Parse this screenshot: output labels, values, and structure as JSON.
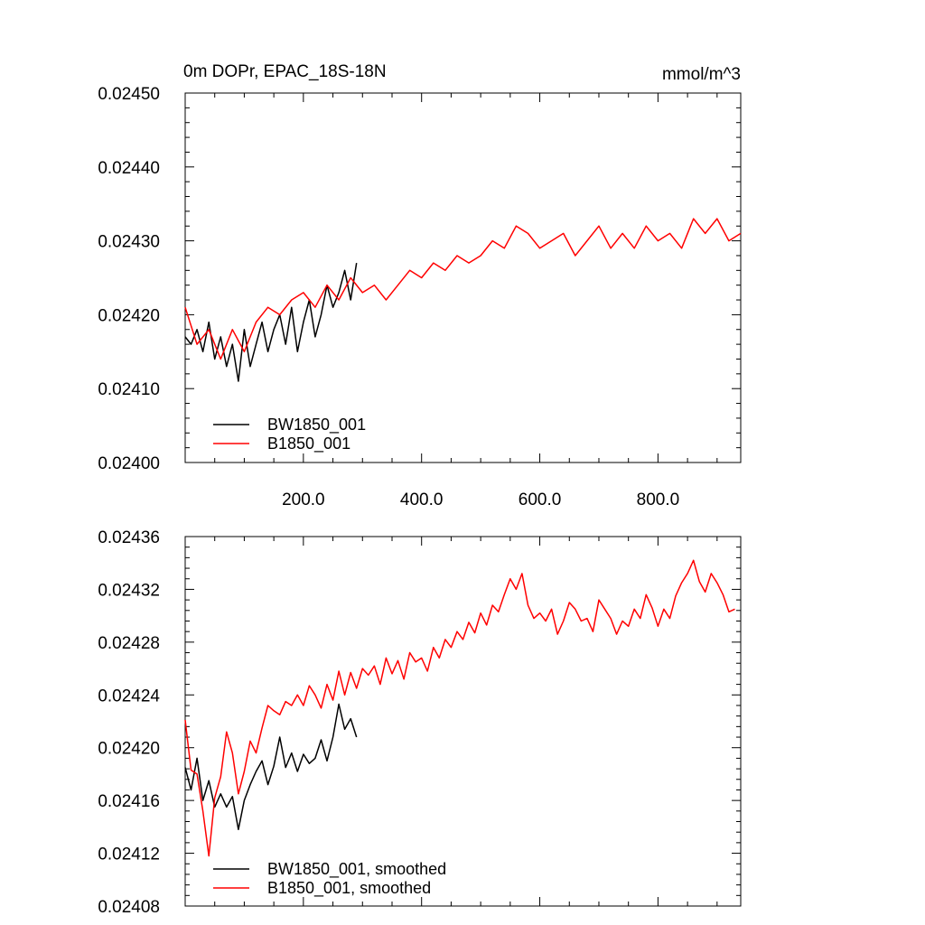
{
  "chart_data": [
    {
      "type": "line",
      "title_left": "0m DOPr, EPAC_18S-18N",
      "title_right": "mmol/m^3",
      "xlim": [
        0,
        940
      ],
      "ylim": [
        0.024,
        0.0245
      ],
      "x_tick_values": [
        200,
        400,
        600,
        800
      ],
      "x_tick_labels": [
        "200.0",
        "400.0",
        "600.0",
        "800.0"
      ],
      "y_tick_values": [
        0.024,
        0.0241,
        0.0242,
        0.0243,
        0.0244,
        0.0245
      ],
      "y_tick_labels": [
        "0.02400",
        "0.02410",
        "0.02420",
        "0.02430",
        "0.02440",
        "0.02450"
      ],
      "legend_position": "bottom-left",
      "series": [
        {
          "name": "BW1850_001",
          "color": "#000000",
          "x": [
            0,
            10,
            20,
            30,
            40,
            50,
            60,
            70,
            80,
            90,
            100,
            110,
            120,
            130,
            140,
            150,
            160,
            170,
            180,
            190,
            200,
            210,
            220,
            230,
            240,
            250,
            260,
            270,
            280,
            290
          ],
          "y": [
            0.02417,
            0.02416,
            0.02418,
            0.02415,
            0.02419,
            0.02414,
            0.02417,
            0.02413,
            0.02416,
            0.02411,
            0.02418,
            0.02413,
            0.02416,
            0.02419,
            0.02415,
            0.02418,
            0.0242,
            0.02416,
            0.02421,
            0.02415,
            0.02419,
            0.02422,
            0.02417,
            0.0242,
            0.02424,
            0.02421,
            0.02423,
            0.02426,
            0.02422,
            0.02427
          ]
        },
        {
          "name": "B1850_001",
          "color": "#ff0000",
          "x": [
            0,
            20,
            40,
            60,
            80,
            100,
            120,
            140,
            160,
            180,
            200,
            220,
            240,
            260,
            280,
            300,
            320,
            340,
            360,
            380,
            400,
            420,
            440,
            460,
            480,
            500,
            520,
            540,
            560,
            580,
            600,
            620,
            640,
            660,
            680,
            700,
            720,
            740,
            760,
            780,
            800,
            820,
            840,
            860,
            880,
            900,
            920,
            940
          ],
          "y": [
            0.02421,
            0.02416,
            0.02418,
            0.02414,
            0.02418,
            0.02415,
            0.02419,
            0.02421,
            0.0242,
            0.02422,
            0.02423,
            0.02421,
            0.02424,
            0.02422,
            0.02425,
            0.02423,
            0.02424,
            0.02422,
            0.02424,
            0.02426,
            0.02425,
            0.02427,
            0.02426,
            0.02428,
            0.02427,
            0.02428,
            0.0243,
            0.02429,
            0.02432,
            0.02431,
            0.02429,
            0.0243,
            0.02431,
            0.02428,
            0.0243,
            0.02432,
            0.02429,
            0.02431,
            0.02429,
            0.02432,
            0.0243,
            0.02431,
            0.02429,
            0.02433,
            0.02431,
            0.02433,
            0.0243,
            0.02431
          ]
        }
      ]
    },
    {
      "type": "line",
      "xlim": [
        0,
        940
      ],
      "ylim": [
        0.02408,
        0.02436
      ],
      "x_tick_values": [
        200,
        400,
        600,
        800
      ],
      "y_tick_values": [
        0.02408,
        0.02412,
        0.02416,
        0.0242,
        0.02424,
        0.02428,
        0.02432,
        0.02436
      ],
      "y_tick_labels": [
        "0.02408",
        "0.02412",
        "0.02416",
        "0.02420",
        "0.02424",
        "0.02428",
        "0.02432",
        "0.02436"
      ],
      "legend_position": "bottom-left",
      "series": [
        {
          "name": "BW1850_001, smoothed",
          "color": "#000000",
          "x": [
            0,
            10,
            20,
            30,
            40,
            50,
            60,
            70,
            80,
            90,
            100,
            110,
            120,
            130,
            140,
            150,
            160,
            170,
            180,
            190,
            200,
            210,
            220,
            230,
            240,
            250,
            260,
            270,
            280,
            290
          ],
          "y": [
            0.024185,
            0.024168,
            0.024192,
            0.02416,
            0.024175,
            0.024155,
            0.024165,
            0.024155,
            0.024163,
            0.024138,
            0.02416,
            0.024172,
            0.024182,
            0.02419,
            0.024172,
            0.024186,
            0.024208,
            0.024185,
            0.024196,
            0.024182,
            0.024195,
            0.024188,
            0.024192,
            0.024206,
            0.02419,
            0.024208,
            0.024233,
            0.024214,
            0.024222,
            0.024208
          ]
        },
        {
          "name": "B1850_001, smoothed",
          "color": "#ff0000",
          "x": [
            0,
            10,
            20,
            30,
            40,
            50,
            60,
            70,
            80,
            90,
            100,
            110,
            120,
            130,
            140,
            150,
            160,
            170,
            180,
            190,
            200,
            210,
            220,
            230,
            240,
            250,
            260,
            270,
            280,
            290,
            300,
            310,
            320,
            330,
            340,
            350,
            360,
            370,
            380,
            390,
            400,
            410,
            420,
            430,
            440,
            450,
            460,
            470,
            480,
            490,
            500,
            510,
            520,
            530,
            540,
            550,
            560,
            570,
            580,
            590,
            600,
            610,
            620,
            630,
            640,
            650,
            660,
            670,
            680,
            690,
            700,
            710,
            720,
            730,
            740,
            750,
            760,
            770,
            780,
            790,
            800,
            810,
            820,
            830,
            840,
            850,
            860,
            870,
            880,
            890,
            900,
            910,
            920,
            930
          ],
          "y": [
            0.024221,
            0.024183,
            0.02418,
            0.024152,
            0.024118,
            0.024162,
            0.024178,
            0.024212,
            0.024196,
            0.024165,
            0.024182,
            0.024205,
            0.024196,
            0.024215,
            0.024232,
            0.024228,
            0.024225,
            0.024235,
            0.024232,
            0.02424,
            0.024232,
            0.024247,
            0.02424,
            0.02423,
            0.024248,
            0.024236,
            0.024258,
            0.02424,
            0.024257,
            0.024245,
            0.02426,
            0.024255,
            0.024262,
            0.024248,
            0.024268,
            0.024256,
            0.024266,
            0.024252,
            0.024272,
            0.024265,
            0.024268,
            0.024258,
            0.024276,
            0.024268,
            0.024282,
            0.024276,
            0.024288,
            0.024282,
            0.024295,
            0.024287,
            0.024302,
            0.024293,
            0.024308,
            0.024303,
            0.024316,
            0.024328,
            0.02432,
            0.024332,
            0.024308,
            0.024298,
            0.024302,
            0.024296,
            0.024305,
            0.024286,
            0.024296,
            0.02431,
            0.024305,
            0.024296,
            0.024298,
            0.024288,
            0.024312,
            0.024305,
            0.024298,
            0.024286,
            0.024296,
            0.024292,
            0.024305,
            0.024298,
            0.024316,
            0.024306,
            0.024292,
            0.024305,
            0.024298,
            0.024315,
            0.024325,
            0.024332,
            0.024342,
            0.024326,
            0.024318,
            0.024332,
            0.024325,
            0.024316,
            0.024303,
            0.024305
          ]
        }
      ]
    }
  ]
}
